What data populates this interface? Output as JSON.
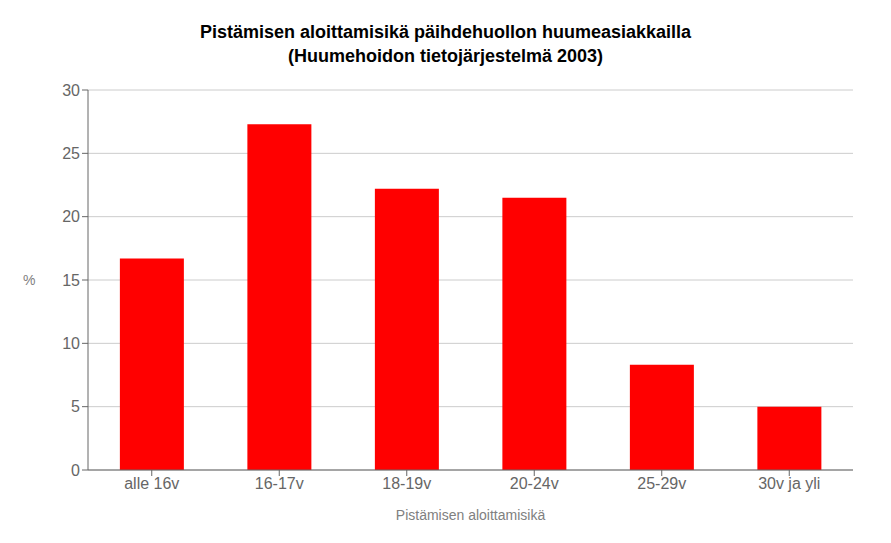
{
  "chart_data": {
    "type": "bar",
    "title": "Pistämisen aloittamisikä päihdehuollon huumeasiakkailla",
    "subtitle": "(Huumehoidon tietojärjestelmä 2003)",
    "categories": [
      "alle 16v",
      "16-17v",
      "18-19v",
      "20-24v",
      "25-29v",
      "30v ja yli"
    ],
    "values": [
      16.7,
      27.3,
      22.2,
      21.5,
      8.3,
      5.0
    ],
    "color": "#FF0000",
    "xlabel": "Pistämisen aloittamisikä",
    "ylabel": "%",
    "ylim": [
      0,
      30
    ],
    "yticks": [
      0,
      5,
      10,
      15,
      20,
      25,
      30
    ],
    "grid": true
  }
}
